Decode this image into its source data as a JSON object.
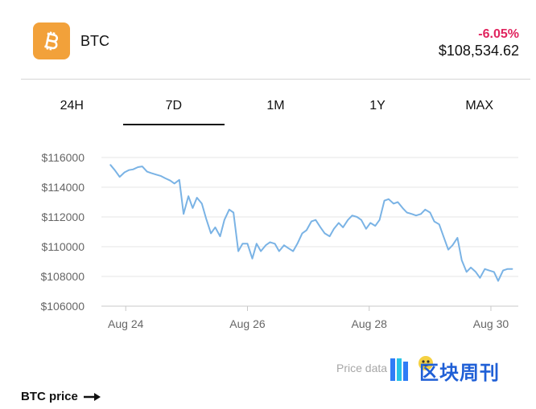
{
  "header": {
    "icon": "bitcoin-icon",
    "symbol": "BTC",
    "change": "-6.05%",
    "change_color": "#e0245e",
    "price": "$108,534.62",
    "icon_color": "#f2a13a"
  },
  "tabs": [
    {
      "label": "24H",
      "active": false
    },
    {
      "label": "7D",
      "active": true
    },
    {
      "label": "1M",
      "active": false
    },
    {
      "label": "1Y",
      "active": false
    },
    {
      "label": "MAX",
      "active": false
    }
  ],
  "chart_data": {
    "type": "line",
    "title": "",
    "xlabel": "",
    "ylabel": "",
    "x_ticks": [
      "Aug 24",
      "Aug 26",
      "Aug 28",
      "Aug 30"
    ],
    "y_ticks": [
      "$116000",
      "$114000",
      "$112000",
      "$110000",
      "$108000",
      "$106000"
    ],
    "ylim": [
      106000,
      116000
    ],
    "xlim": [
      23.6,
      30.45
    ],
    "grid": true,
    "line_color": "#7ab3e5",
    "series": [
      {
        "name": "",
        "x": [
          23.75,
          23.82,
          23.9,
          23.98,
          24.05,
          24.12,
          24.2,
          24.27,
          24.35,
          24.42,
          24.5,
          24.58,
          24.65,
          24.73,
          24.8,
          24.88,
          24.95,
          25.03,
          25.1,
          25.17,
          25.25,
          25.32,
          25.4,
          25.47,
          25.55,
          25.62,
          25.7,
          25.77,
          25.85,
          25.92,
          26.0,
          26.08,
          26.15,
          26.22,
          26.3,
          26.37,
          26.45,
          26.52,
          26.6,
          26.67,
          26.75,
          26.82,
          26.9,
          26.97,
          27.05,
          27.12,
          27.2,
          27.27,
          27.35,
          27.42,
          27.5,
          27.57,
          27.65,
          27.72,
          27.8,
          27.87,
          27.95,
          28.02,
          28.1,
          28.17,
          28.25,
          28.32,
          28.4,
          28.47,
          28.55,
          28.62,
          28.7,
          28.77,
          28.85,
          28.92,
          29.0,
          29.07,
          29.15,
          29.22,
          29.3,
          29.37,
          29.45,
          29.52,
          29.6,
          29.67,
          29.75,
          29.82,
          29.9,
          29.97,
          30.05,
          30.12,
          30.2,
          30.27,
          30.35
        ],
        "values": [
          115500,
          115150,
          114700,
          115000,
          115150,
          115200,
          115350,
          115400,
          115050,
          114950,
          114850,
          114750,
          114600,
          114450,
          114250,
          114500,
          112200,
          113400,
          112600,
          113300,
          112900,
          111900,
          110900,
          111300,
          110700,
          111800,
          112500,
          112300,
          109700,
          110200,
          110200,
          109200,
          110200,
          109700,
          110100,
          110300,
          110200,
          109700,
          110100,
          109900,
          109700,
          110200,
          110900,
          111100,
          111700,
          111800,
          111300,
          110900,
          110700,
          111200,
          111600,
          111300,
          111800,
          112100,
          112000,
          111800,
          111200,
          111600,
          111400,
          111800,
          113100,
          113200,
          112900,
          113000,
          112600,
          112300,
          112200,
          112100,
          112200,
          112500,
          112300,
          111700,
          111500,
          110700,
          109800,
          110100,
          110600,
          109100,
          108300,
          108600,
          108300,
          107900,
          108500,
          108400,
          108300,
          107700,
          108400,
          108500,
          108500
        ]
      }
    ]
  },
  "footer": {
    "note": "Price data",
    "link_label": "BTC price",
    "arrow_icon": "arrow-right-icon"
  },
  "watermark": {
    "logo_icon": "watermark-logo-icon",
    "text": "区块周刊"
  }
}
